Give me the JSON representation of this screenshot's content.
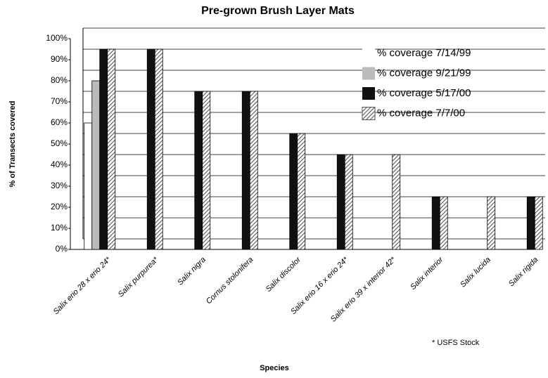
{
  "chart_data": {
    "type": "bar",
    "title": "Pre-grown Brush Layer Mats",
    "y_label": "% of Transects covered",
    "x_label": "Species",
    "annotation": "* USFS Stock",
    "categories": [
      "Salix erio 28 x erio 24*",
      "Salix purpurea*",
      "Salix nigra",
      "Cornus stolonifera",
      "Salix discolor",
      "Salix erio 16 x erio 24*",
      "Salix erio 39 x interior 42*",
      "Salix interior",
      "Salix lucida",
      "Salix rigida"
    ],
    "series": [
      {
        "name": "% coverage 7/14/99",
        "color": "#ffffff",
        "values": [
          60,
          0,
          0,
          0,
          0,
          0,
          0,
          0,
          0,
          0
        ]
      },
      {
        "name": "% coverage 9/21/99",
        "color": "#bbbbbb",
        "values": [
          80,
          0,
          0,
          0,
          0,
          0,
          0,
          0,
          0,
          0
        ]
      },
      {
        "name": "% coverage 5/17/00",
        "color": "#111111",
        "values": [
          95,
          95,
          75,
          75,
          55,
          45,
          0,
          25,
          0,
          25
        ]
      },
      {
        "name": "% coverage 7/7/00",
        "color": "#666666",
        "hatch": true,
        "values": [
          95,
          95,
          75,
          75,
          55,
          45,
          45,
          25,
          25,
          25
        ]
      }
    ],
    "ylim": [
      0,
      100
    ],
    "yticks": [
      {
        "value": 0,
        "label": "0%"
      },
      {
        "value": 10,
        "label": "10%"
      },
      {
        "value": 20,
        "label": "20%"
      },
      {
        "value": 30,
        "label": "30%"
      },
      {
        "value": 40,
        "label": "40%"
      },
      {
        "value": 50,
        "label": "50%"
      },
      {
        "value": 60,
        "label": "60%"
      },
      {
        "value": 70,
        "label": "70%"
      },
      {
        "value": 80,
        "label": "80%"
      },
      {
        "value": 90,
        "label": "90%"
      },
      {
        "value": 100,
        "label": "100%"
      }
    ],
    "grid": true
  }
}
